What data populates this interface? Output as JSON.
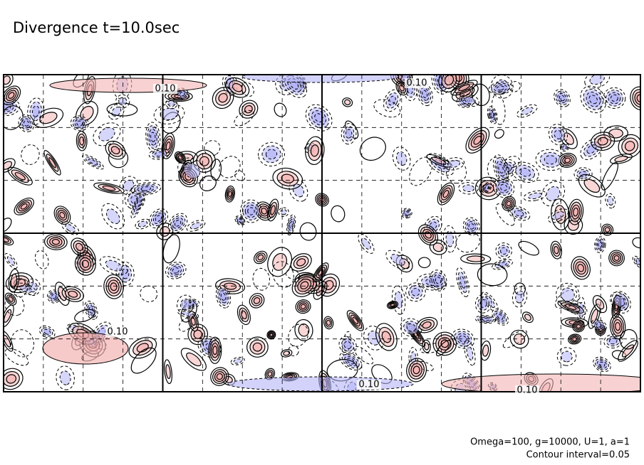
{
  "chart_data": {
    "type": "contour",
    "title": "Divergence t=10.0sec",
    "contour_labels": [
      {
        "value": 0.1,
        "label": "0.10"
      },
      {
        "value": 0.1,
        "label": "0.10"
      },
      {
        "value": 0.1,
        "label": "0.10"
      },
      {
        "value": 0.1,
        "label": "0.10"
      },
      {
        "value": 0.1,
        "label": "0.10"
      }
    ],
    "footer": [
      "Omega=100, g=10000, U=1, a=1",
      "Contour interval=0.05"
    ],
    "positive_color": "#f4b4b4",
    "negative_color": "#b4b4f8",
    "grid": true
  }
}
